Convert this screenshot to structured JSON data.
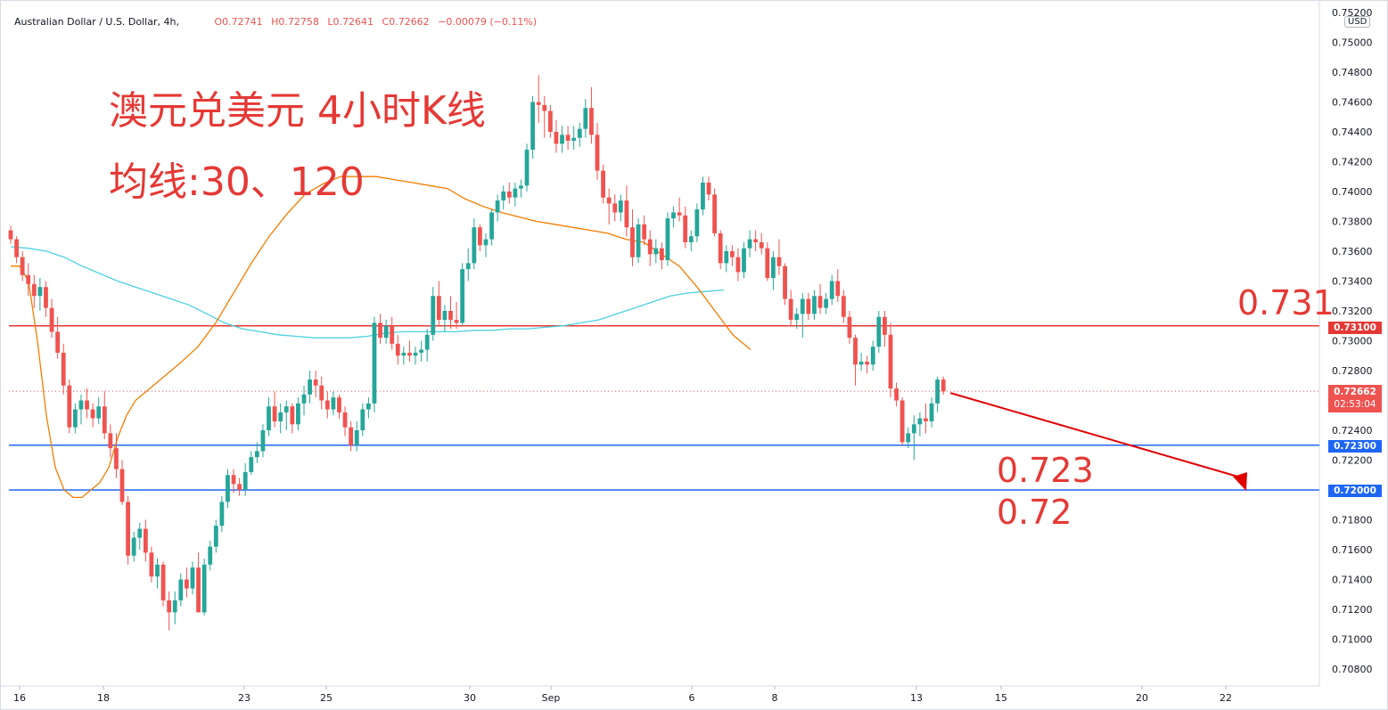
{
  "legend": {
    "symbol": "Australian Dollar / U.S. Dollar, 4h,",
    "open": "O0.72741",
    "high": "H0.72758",
    "low": "L0.72641",
    "close": "C0.72662",
    "change": "−0.00079 (−0.11%)"
  },
  "annotations": {
    "title": "澳元兑美元 4小时K线",
    "subtitle": "均线:30、120",
    "resistance_label": "0.731",
    "support_label_1": "0.723",
    "support_label_2": "0.72"
  },
  "price_axis": {
    "currency": "USD",
    "ticks": [
      "0.75200",
      "0.75000",
      "0.74800",
      "0.74600",
      "0.74400",
      "0.74200",
      "0.74000",
      "0.73800",
      "0.73600",
      "0.73400",
      "0.73200",
      "0.73000",
      "0.72800",
      "0.72400",
      "0.72200",
      "0.71800",
      "0.71600",
      "0.71400",
      "0.71200",
      "0.71000",
      "0.70800"
    ],
    "line_tags": {
      "resistance": "0.73100",
      "support_1": "0.72300",
      "support_2": "0.72000"
    },
    "last_price": "0.72662",
    "countdown": "02:53:04"
  },
  "time_axis": {
    "ticks": [
      "16",
      "18",
      "23",
      "25",
      "30",
      "Sep",
      "6",
      "8",
      "13",
      "15",
      "20",
      "22"
    ]
  },
  "colors": {
    "up": "#26a69a",
    "down": "#ef5350",
    "ma30": "#f57c00",
    "ma120": "#4dd0e1",
    "resistance_line": "#e53935",
    "support_line": "#1e66f5"
  },
  "chart_data": {
    "type": "candlestick",
    "symbol": "AUD/USD",
    "interval": "4h",
    "ylim": [
      0.7068,
      0.7522
    ],
    "horizontal_lines": [
      {
        "price": 0.731,
        "color": "#e53935"
      },
      {
        "price": 0.723,
        "color": "#1e66f5"
      },
      {
        "price": 0.72,
        "color": "#1e66f5"
      }
    ],
    "last_price": 0.72662,
    "candles": [
      [
        0.7374,
        0.7377,
        0.7365,
        0.7368
      ],
      [
        0.7368,
        0.737,
        0.7352,
        0.7356
      ],
      [
        0.7356,
        0.736,
        0.734,
        0.7344
      ],
      [
        0.7344,
        0.7352,
        0.733,
        0.7338
      ],
      [
        0.7338,
        0.7344,
        0.7322,
        0.733
      ],
      [
        0.733,
        0.7342,
        0.732,
        0.7336
      ],
      [
        0.7336,
        0.734,
        0.7316,
        0.7322
      ],
      [
        0.7322,
        0.7328,
        0.7302,
        0.7306
      ],
      [
        0.7306,
        0.7316,
        0.7288,
        0.7292
      ],
      [
        0.7292,
        0.7298,
        0.7264,
        0.727
      ],
      [
        0.727,
        0.7274,
        0.7238,
        0.7242
      ],
      [
        0.7242,
        0.7258,
        0.7238,
        0.7254
      ],
      [
        0.7254,
        0.7264,
        0.7244,
        0.726
      ],
      [
        0.726,
        0.7268,
        0.7248,
        0.7254
      ],
      [
        0.7254,
        0.7258,
        0.7242,
        0.7248
      ],
      [
        0.7248,
        0.7262,
        0.7244,
        0.7256
      ],
      [
        0.7256,
        0.7266,
        0.7234,
        0.7238
      ],
      [
        0.7238,
        0.7244,
        0.7222,
        0.7228
      ],
      [
        0.7228,
        0.7238,
        0.7208,
        0.7214
      ],
      [
        0.7214,
        0.722,
        0.719,
        0.7192
      ],
      [
        0.7192,
        0.7196,
        0.715,
        0.7156
      ],
      [
        0.7156,
        0.7172,
        0.7152,
        0.7168
      ],
      [
        0.7168,
        0.7178,
        0.716,
        0.7174
      ],
      [
        0.7174,
        0.718,
        0.7152,
        0.7158
      ],
      [
        0.7158,
        0.7162,
        0.7138,
        0.7142
      ],
      [
        0.7142,
        0.7154,
        0.7134,
        0.715
      ],
      [
        0.715,
        0.7152,
        0.7122,
        0.7126
      ],
      [
        0.7126,
        0.7132,
        0.7106,
        0.7118
      ],
      [
        0.7118,
        0.7132,
        0.711,
        0.7126
      ],
      [
        0.7126,
        0.7144,
        0.7122,
        0.714
      ],
      [
        0.714,
        0.7148,
        0.7128,
        0.7134
      ],
      [
        0.7134,
        0.7152,
        0.713,
        0.7148
      ],
      [
        0.7148,
        0.7158,
        0.7118,
        0.7118
      ],
      [
        0.7118,
        0.7154,
        0.7116,
        0.715
      ],
      [
        0.715,
        0.7166,
        0.7146,
        0.7162
      ],
      [
        0.7162,
        0.718,
        0.7158,
        0.7176
      ],
      [
        0.7176,
        0.7196,
        0.7172,
        0.7192
      ],
      [
        0.7192,
        0.7214,
        0.7188,
        0.721
      ],
      [
        0.721,
        0.7214,
        0.7198,
        0.7204
      ],
      [
        0.7204,
        0.7208,
        0.7196,
        0.72
      ],
      [
        0.72,
        0.7218,
        0.7196,
        0.7212
      ],
      [
        0.7212,
        0.7226,
        0.721,
        0.7222
      ],
      [
        0.7222,
        0.7232,
        0.7218,
        0.7226
      ],
      [
        0.7226,
        0.7244,
        0.7222,
        0.724
      ],
      [
        0.724,
        0.7262,
        0.7236,
        0.7256
      ],
      [
        0.7256,
        0.7266,
        0.7242,
        0.7246
      ],
      [
        0.7246,
        0.7258,
        0.7238,
        0.7252
      ],
      [
        0.7252,
        0.726,
        0.724,
        0.7256
      ],
      [
        0.7256,
        0.7258,
        0.7238,
        0.7244
      ],
      [
        0.7244,
        0.7262,
        0.724,
        0.7258
      ],
      [
        0.7258,
        0.727,
        0.725,
        0.7264
      ],
      [
        0.7264,
        0.728,
        0.7258,
        0.7274
      ],
      [
        0.7274,
        0.728,
        0.7262,
        0.727
      ],
      [
        0.727,
        0.7276,
        0.7254,
        0.726
      ],
      [
        0.726,
        0.7266,
        0.7248,
        0.7254
      ],
      [
        0.7254,
        0.7266,
        0.725,
        0.7262
      ],
      [
        0.7262,
        0.7264,
        0.7248,
        0.7252
      ],
      [
        0.7252,
        0.7256,
        0.7236,
        0.7242
      ],
      [
        0.7242,
        0.7246,
        0.7226,
        0.723
      ],
      [
        0.723,
        0.7246,
        0.7226,
        0.724
      ],
      [
        0.724,
        0.7258,
        0.7236,
        0.7254
      ],
      [
        0.7254,
        0.7262,
        0.7248,
        0.7258
      ],
      [
        0.7258,
        0.7316,
        0.7252,
        0.7312
      ],
      [
        0.7312,
        0.7318,
        0.7298,
        0.7302
      ],
      [
        0.7302,
        0.7314,
        0.7298,
        0.731
      ],
      [
        0.731,
        0.7316,
        0.7294,
        0.7298
      ],
      [
        0.7298,
        0.7304,
        0.7284,
        0.729
      ],
      [
        0.729,
        0.7296,
        0.7284,
        0.7292
      ],
      [
        0.7292,
        0.73,
        0.7286,
        0.729
      ],
      [
        0.729,
        0.7296,
        0.7284,
        0.7292
      ],
      [
        0.7292,
        0.73,
        0.7286,
        0.7294
      ],
      [
        0.7294,
        0.7308,
        0.7286,
        0.7304
      ],
      [
        0.7304,
        0.7336,
        0.73,
        0.733
      ],
      [
        0.733,
        0.734,
        0.731,
        0.7314
      ],
      [
        0.7314,
        0.7324,
        0.7306,
        0.732
      ],
      [
        0.732,
        0.733,
        0.7308,
        0.7314
      ],
      [
        0.7314,
        0.7326,
        0.7308,
        0.7312
      ],
      [
        0.7312,
        0.7352,
        0.731,
        0.7348
      ],
      [
        0.7348,
        0.7362,
        0.734,
        0.7352
      ],
      [
        0.7352,
        0.7382,
        0.7348,
        0.7376
      ],
      [
        0.7376,
        0.7378,
        0.736,
        0.7364
      ],
      [
        0.7364,
        0.7372,
        0.7356,
        0.7368
      ],
      [
        0.7368,
        0.7388,
        0.7364,
        0.7386
      ],
      [
        0.7386,
        0.7398,
        0.738,
        0.7394
      ],
      [
        0.7394,
        0.7404,
        0.7388,
        0.74
      ],
      [
        0.74,
        0.7406,
        0.7392,
        0.7396
      ],
      [
        0.7396,
        0.7406,
        0.739,
        0.7402
      ],
      [
        0.7402,
        0.7408,
        0.7396,
        0.7404
      ],
      [
        0.7404,
        0.7432,
        0.74,
        0.7428
      ],
      [
        0.7428,
        0.7464,
        0.7422,
        0.746
      ],
      [
        0.746,
        0.7478,
        0.7446,
        0.7458
      ],
      [
        0.7458,
        0.7464,
        0.7436,
        0.7454
      ],
      [
        0.7454,
        0.7458,
        0.7436,
        0.744
      ],
      [
        0.744,
        0.7448,
        0.7426,
        0.7432
      ],
      [
        0.7432,
        0.7444,
        0.7426,
        0.7438
      ],
      [
        0.7438,
        0.7444,
        0.7428,
        0.7434
      ],
      [
        0.7434,
        0.7444,
        0.7428,
        0.7436
      ],
      [
        0.7436,
        0.7446,
        0.743,
        0.7442
      ],
      [
        0.7442,
        0.7462,
        0.7436,
        0.7456
      ],
      [
        0.7456,
        0.747,
        0.7432,
        0.7438
      ],
      [
        0.7438,
        0.7446,
        0.7408,
        0.7414
      ],
      [
        0.7414,
        0.7418,
        0.7392,
        0.7396
      ],
      [
        0.7396,
        0.7402,
        0.7378,
        0.7392
      ],
      [
        0.7392,
        0.7398,
        0.738,
        0.7386
      ],
      [
        0.7386,
        0.7398,
        0.738,
        0.7394
      ],
      [
        0.7394,
        0.7404,
        0.737,
        0.7376
      ],
      [
        0.7376,
        0.7388,
        0.735,
        0.7356
      ],
      [
        0.7356,
        0.7382,
        0.7352,
        0.7378
      ],
      [
        0.7378,
        0.7384,
        0.7364,
        0.7368
      ],
      [
        0.7368,
        0.7374,
        0.735,
        0.7358
      ],
      [
        0.7358,
        0.7368,
        0.7352,
        0.7362
      ],
      [
        0.7362,
        0.7366,
        0.7348,
        0.7354
      ],
      [
        0.7354,
        0.7386,
        0.735,
        0.7382
      ],
      [
        0.7382,
        0.739,
        0.7376,
        0.7386
      ],
      [
        0.7386,
        0.7396,
        0.738,
        0.7384
      ],
      [
        0.7384,
        0.739,
        0.7362,
        0.7366
      ],
      [
        0.7366,
        0.7374,
        0.736,
        0.737
      ],
      [
        0.737,
        0.7392,
        0.7366,
        0.7388
      ],
      [
        0.7388,
        0.741,
        0.7384,
        0.7406
      ],
      [
        0.7406,
        0.741,
        0.7394,
        0.7398
      ],
      [
        0.7398,
        0.7402,
        0.737,
        0.7372
      ],
      [
        0.7372,
        0.7374,
        0.7348,
        0.7352
      ],
      [
        0.7352,
        0.7364,
        0.7346,
        0.736
      ],
      [
        0.736,
        0.7364,
        0.735,
        0.7356
      ],
      [
        0.7356,
        0.7362,
        0.734,
        0.7346
      ],
      [
        0.7346,
        0.7366,
        0.7342,
        0.7362
      ],
      [
        0.7362,
        0.7374,
        0.7356,
        0.7368
      ],
      [
        0.7368,
        0.7374,
        0.736,
        0.7366
      ],
      [
        0.7366,
        0.7372,
        0.7358,
        0.7362
      ],
      [
        0.7362,
        0.7366,
        0.734,
        0.7342
      ],
      [
        0.7342,
        0.736,
        0.7334,
        0.7356
      ],
      [
        0.7356,
        0.7368,
        0.7344,
        0.735
      ],
      [
        0.735,
        0.7352,
        0.7324,
        0.7328
      ],
      [
        0.7328,
        0.7334,
        0.731,
        0.7314
      ],
      [
        0.7314,
        0.7322,
        0.7308,
        0.7318
      ],
      [
        0.7318,
        0.7332,
        0.7302,
        0.7328
      ],
      [
        0.7328,
        0.7332,
        0.7314,
        0.7318
      ],
      [
        0.7318,
        0.7334,
        0.7314,
        0.733
      ],
      [
        0.733,
        0.7338,
        0.7318,
        0.7322
      ],
      [
        0.7322,
        0.7332,
        0.7318,
        0.7328
      ],
      [
        0.7328,
        0.7344,
        0.7324,
        0.734
      ],
      [
        0.734,
        0.7348,
        0.7326,
        0.733
      ],
      [
        0.733,
        0.7334,
        0.7312,
        0.7316
      ],
      [
        0.7316,
        0.732,
        0.7298,
        0.7302
      ],
      [
        0.7302,
        0.7304,
        0.727,
        0.7284
      ],
      [
        0.7284,
        0.7292,
        0.728,
        0.7286
      ],
      [
        0.7286,
        0.729,
        0.7278,
        0.7284
      ],
      [
        0.7284,
        0.73,
        0.728,
        0.7296
      ],
      [
        0.7296,
        0.732,
        0.7292,
        0.7316
      ],
      [
        0.7316,
        0.732,
        0.7296,
        0.7304
      ],
      [
        0.7304,
        0.7312,
        0.7262,
        0.7268
      ],
      [
        0.7268,
        0.7272,
        0.7256,
        0.726
      ],
      [
        0.726,
        0.7262,
        0.723,
        0.7232
      ],
      [
        0.7232,
        0.7242,
        0.7228,
        0.7238
      ],
      [
        0.7238,
        0.725,
        0.722,
        0.7244
      ],
      [
        0.7244,
        0.7252,
        0.7236,
        0.7248
      ],
      [
        0.7248,
        0.7258,
        0.7238,
        0.7246
      ],
      [
        0.7246,
        0.7262,
        0.7242,
        0.7258
      ],
      [
        0.7258,
        0.7276,
        0.7252,
        0.7274
      ],
      [
        0.7274,
        0.7276,
        0.7264,
        0.7266
      ]
    ],
    "ma30": [
      [
        0,
        0.735
      ],
      [
        10,
        0.735
      ],
      [
        20,
        0.734
      ],
      [
        30,
        0.73
      ],
      [
        40,
        0.725
      ],
      [
        50,
        0.7215
      ],
      [
        60,
        0.72
      ],
      [
        70,
        0.7195
      ],
      [
        80,
        0.7195
      ],
      [
        90,
        0.72
      ],
      [
        100,
        0.7205
      ],
      [
        110,
        0.7215
      ],
      [
        120,
        0.7235
      ],
      [
        130,
        0.725
      ],
      [
        140,
        0.726
      ],
      [
        150,
        0.7265
      ],
      [
        160,
        0.727
      ],
      [
        180,
        0.728
      ],
      [
        190,
        0.7285
      ],
      [
        210,
        0.7296
      ],
      [
        230,
        0.7312
      ],
      [
        250,
        0.7332
      ],
      [
        270,
        0.7352
      ],
      [
        290,
        0.737
      ],
      [
        310,
        0.7385
      ],
      [
        330,
        0.7398
      ],
      [
        350,
        0.7405
      ],
      [
        370,
        0.741
      ],
      [
        390,
        0.741
      ],
      [
        410,
        0.741
      ],
      [
        430,
        0.7408
      ],
      [
        450,
        0.7406
      ],
      [
        470,
        0.7404
      ],
      [
        490,
        0.7402
      ],
      [
        510,
        0.7395
      ],
      [
        530,
        0.739
      ],
      [
        550,
        0.7386
      ],
      [
        570,
        0.7383
      ],
      [
        590,
        0.738
      ],
      [
        610,
        0.7378
      ],
      [
        630,
        0.7376
      ],
      [
        650,
        0.7374
      ],
      [
        670,
        0.7372
      ],
      [
        690,
        0.7368
      ],
      [
        710,
        0.7366
      ],
      [
        730,
        0.7358
      ],
      [
        750,
        0.735
      ],
      [
        770,
        0.7336
      ],
      [
        790,
        0.732
      ],
      [
        810,
        0.7304
      ],
      [
        830,
        0.7294
      ]
    ],
    "ma120": [
      [
        0,
        0.7363
      ],
      [
        20,
        0.7362
      ],
      [
        40,
        0.736
      ],
      [
        60,
        0.7356
      ],
      [
        80,
        0.735
      ],
      [
        100,
        0.7345
      ],
      [
        120,
        0.734
      ],
      [
        140,
        0.7336
      ],
      [
        160,
        0.7332
      ],
      [
        180,
        0.7328
      ],
      [
        200,
        0.7324
      ],
      [
        220,
        0.7318
      ],
      [
        240,
        0.7312
      ],
      [
        260,
        0.7308
      ],
      [
        280,
        0.7306
      ],
      [
        300,
        0.7304
      ],
      [
        320,
        0.7303
      ],
      [
        340,
        0.7302
      ],
      [
        360,
        0.7302
      ],
      [
        380,
        0.7302
      ],
      [
        400,
        0.7303
      ],
      [
        420,
        0.7305
      ],
      [
        440,
        0.7306
      ],
      [
        460,
        0.7306
      ],
      [
        480,
        0.7306
      ],
      [
        500,
        0.7306
      ],
      [
        520,
        0.7307
      ],
      [
        540,
        0.7307
      ],
      [
        560,
        0.7308
      ],
      [
        580,
        0.7308
      ],
      [
        600,
        0.7309
      ],
      [
        620,
        0.731
      ],
      [
        640,
        0.7312
      ],
      [
        660,
        0.7314
      ],
      [
        680,
        0.7318
      ],
      [
        700,
        0.7322
      ],
      [
        720,
        0.7326
      ],
      [
        740,
        0.733
      ],
      [
        760,
        0.7332
      ],
      [
        780,
        0.7333
      ],
      [
        800,
        0.7334
      ]
    ]
  }
}
